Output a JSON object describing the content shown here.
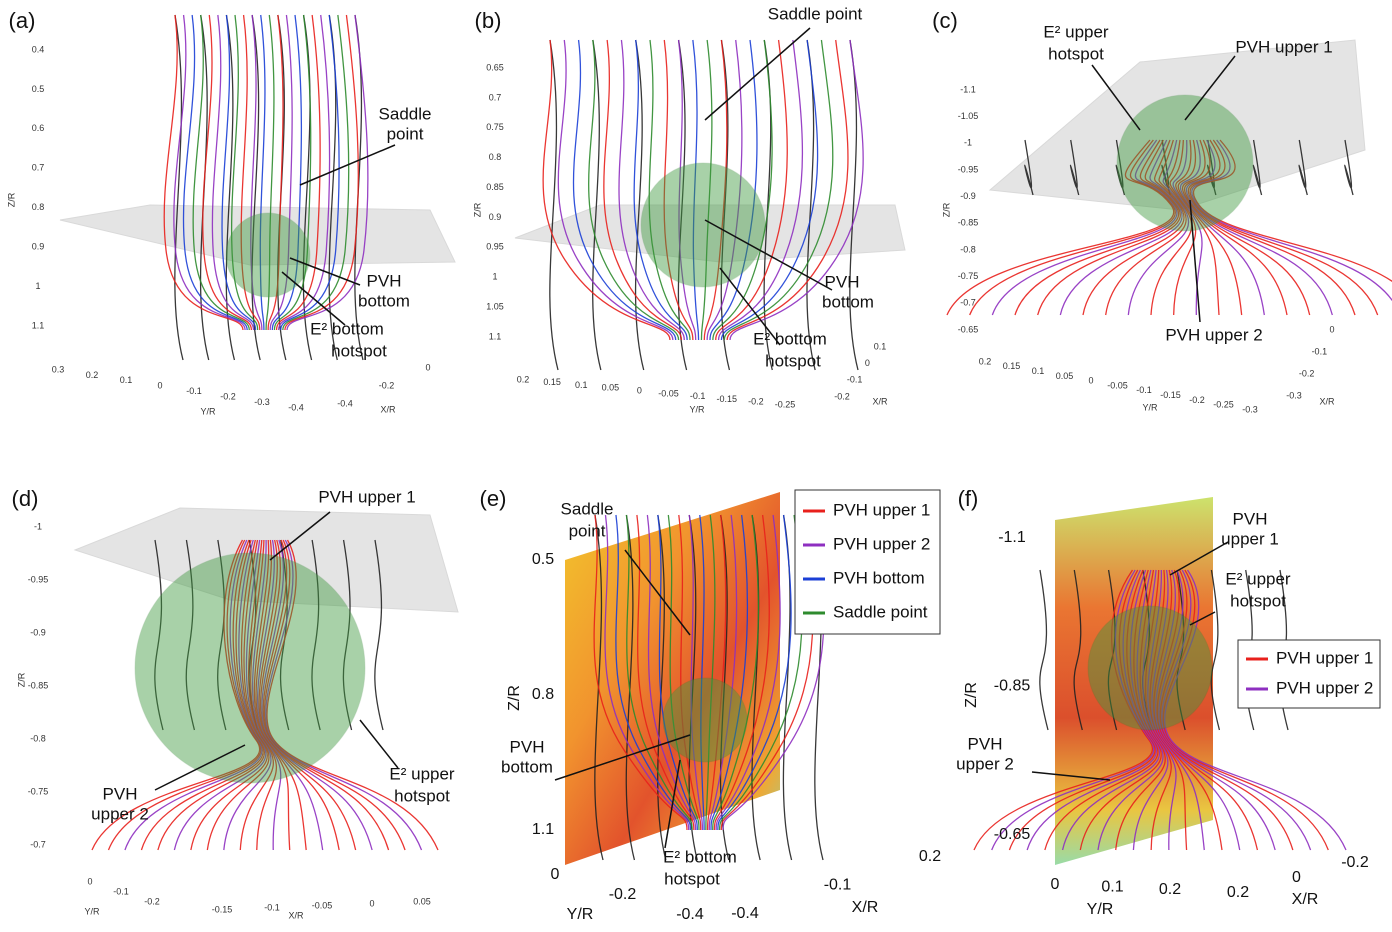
{
  "panels": [
    {
      "label": "(a)",
      "annotations": [
        {
          "lines": [
            "Saddle",
            "point"
          ]
        },
        {
          "lines": [
            "PVH",
            "bottom"
          ]
        },
        {
          "lines": [
            "E² bottom",
            "hotspot"
          ]
        }
      ],
      "z_axis": {
        "title": "Z/R",
        "ticks": [
          0.4,
          0.5,
          0.6,
          0.7,
          0.8,
          0.9,
          1,
          1.1
        ]
      },
      "y_axis": {
        "title": "Y/R",
        "ticks": [
          0.3,
          0.2,
          0.1,
          0,
          -0.1,
          -0.2,
          -0.3,
          -0.4
        ]
      },
      "x_axis": {
        "title": "X/R",
        "ticks": [
          0,
          -0.2,
          -0.4
        ]
      }
    },
    {
      "label": "(b)",
      "annotations": [
        {
          "lines": [
            "Saddle point"
          ]
        },
        {
          "lines": [
            "PVH",
            "bottom"
          ]
        },
        {
          "lines": [
            "E² bottom",
            "hotspot"
          ]
        }
      ],
      "z_axis": {
        "title": "Z/R",
        "ticks": [
          0.65,
          0.7,
          0.75,
          0.8,
          0.85,
          0.9,
          0.95,
          1,
          1.05,
          1.1
        ]
      },
      "y_axis": {
        "title": "Y/R",
        "ticks": [
          0.2,
          0.15,
          0.1,
          0.05,
          0,
          -0.05,
          -0.1,
          -0.15,
          -0.2,
          -0.25
        ]
      },
      "x_axis": {
        "title": "X/R",
        "ticks": [
          0.1,
          0,
          -0.1,
          -0.2
        ]
      }
    },
    {
      "label": "(c)",
      "annotations": [
        {
          "lines": [
            "E² upper",
            "hotspot"
          ]
        },
        {
          "lines": [
            "PVH upper 1"
          ]
        },
        {
          "lines": [
            "PVH upper 2"
          ]
        }
      ],
      "z_axis": {
        "title": "Z/R",
        "ticks": [
          -1.1,
          -1.05,
          -1,
          -0.95,
          -0.9,
          -0.85,
          -0.8,
          -0.75,
          -0.7,
          -0.65
        ]
      },
      "y_axis": {
        "title": "Y/R",
        "ticks": [
          0.2,
          0.15,
          0.1,
          0.05,
          0,
          -0.05,
          -0.1,
          -0.15,
          -0.2,
          -0.25,
          -0.3
        ]
      },
      "x_axis": {
        "title": "X/R",
        "ticks": [
          0,
          -0.1,
          -0.2,
          -0.3
        ]
      }
    },
    {
      "label": "(d)",
      "annotations": [
        {
          "lines": [
            "PVH upper 1"
          ]
        },
        {
          "lines": [
            "PVH",
            "upper 2"
          ]
        },
        {
          "lines": [
            "E² upper",
            "hotspot"
          ]
        }
      ],
      "z_axis": {
        "title": "Z/R",
        "ticks": [
          -1,
          -0.95,
          -0.9,
          -0.85,
          -0.8,
          -0.75,
          -0.7
        ]
      },
      "y_axis": {
        "title": "Y/R",
        "ticks": [
          0,
          -0.1,
          -0.2
        ]
      },
      "x_axis": {
        "title": "X/R",
        "ticks": [
          -0.15,
          -0.1,
          -0.05,
          0,
          0.05
        ]
      }
    },
    {
      "label": "(e)",
      "annotations": [
        {
          "lines": [
            "Saddle",
            "point"
          ]
        },
        {
          "lines": [
            "PVH",
            "bottom"
          ]
        },
        {
          "lines": [
            "E² bottom",
            "hotspot"
          ]
        }
      ],
      "z_axis": {
        "title": "Z/R",
        "ticks": [
          0.5,
          0.8,
          1.1
        ]
      },
      "y_axis": {
        "title": "Y/R",
        "ticks": [
          0,
          -0.2,
          -0.4
        ]
      },
      "x_axis": {
        "title": "X/R",
        "ticks": [
          -0.4,
          -0.1,
          0.2
        ]
      },
      "legend": [
        {
          "name": "PVH upper 1",
          "color": "#e8201c"
        },
        {
          "name": "PVH upper 2",
          "color": "#8e2fc0"
        },
        {
          "name": "PVH bottom",
          "color": "#1b3fd6"
        },
        {
          "name": "Saddle point",
          "color": "#2e8b2e"
        }
      ]
    },
    {
      "label": "(f)",
      "annotations": [
        {
          "lines": [
            "PVH",
            "upper 1"
          ]
        },
        {
          "lines": [
            "E² upper",
            "hotspot"
          ]
        },
        {
          "lines": [
            "PVH",
            "upper 2"
          ]
        }
      ],
      "z_axis": {
        "title": "Z/R",
        "ticks": [
          -1.1,
          -0.85,
          -0.65
        ]
      },
      "y_axis": {
        "title": "Y/R",
        "ticks": [
          0,
          0.1,
          0.2
        ]
      },
      "x_axis": {
        "title": "X/R",
        "ticks": [
          0.2,
          0,
          -0.2
        ]
      },
      "legend": [
        {
          "name": "PVH upper 1",
          "color": "#e8201c"
        },
        {
          "name": "PVH upper 2",
          "color": "#8e2fc0"
        }
      ]
    }
  ]
}
